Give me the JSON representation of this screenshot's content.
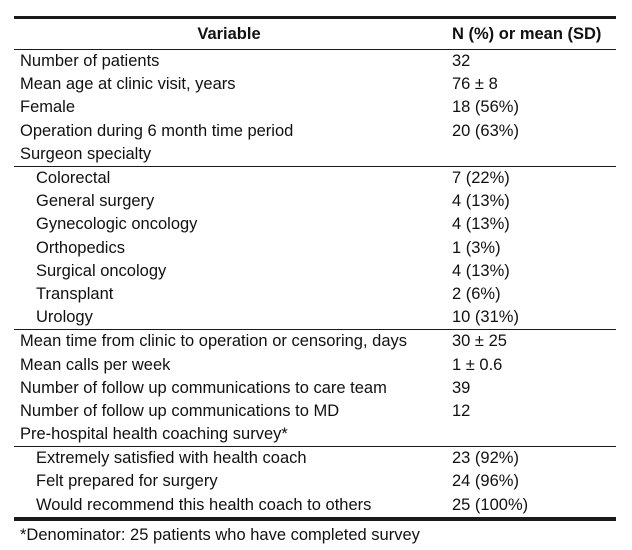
{
  "header": {
    "col1": "Variable",
    "col2": "N (%) or mean (SD)"
  },
  "rows_top": [
    {
      "label": "Number of patients",
      "value": "32"
    },
    {
      "label": "Mean age at clinic visit, years",
      "value": "76 ± 8"
    },
    {
      "label": "Female",
      "value": "18 (56%)"
    },
    {
      "label": "Operation during 6 month time period",
      "value": "20 (63%)"
    },
    {
      "label": "Surgeon specialty",
      "value": ""
    }
  ],
  "specialty": [
    {
      "label": "Colorectal",
      "value": "7 (22%)"
    },
    {
      "label": "General surgery",
      "value": "4 (13%)"
    },
    {
      "label": "Gynecologic oncology",
      "value": "4 (13%)"
    },
    {
      "label": "Orthopedics",
      "value": "1 (3%)"
    },
    {
      "label": "Surgical oncology",
      "value": "4 (13%)"
    },
    {
      "label": "Transplant",
      "value": "2 (6%)"
    },
    {
      "label": "Urology",
      "value": "10 (31%)"
    }
  ],
  "rows_mid": [
    {
      "label": "Mean time from clinic to operation or censoring, days",
      "value": "30 ± 25"
    },
    {
      "label": "Mean calls per week",
      "value": "1 ± 0.6"
    },
    {
      "label": "Number of follow up communications to care team",
      "value": "39"
    },
    {
      "label": "Number of follow up communications to MD",
      "value": "12"
    },
    {
      "label": "Pre-hospital health coaching survey*",
      "value": ""
    }
  ],
  "survey": [
    {
      "label": "Extremely satisfied with health coach",
      "value": "23 (92%)"
    },
    {
      "label": "Felt prepared for surgery",
      "value": "24 (96%)"
    },
    {
      "label": "Would recommend this health coach to others",
      "value": "25 (100%)"
    }
  ],
  "footnote": "*Denominator: 25 patients who have completed survey"
}
